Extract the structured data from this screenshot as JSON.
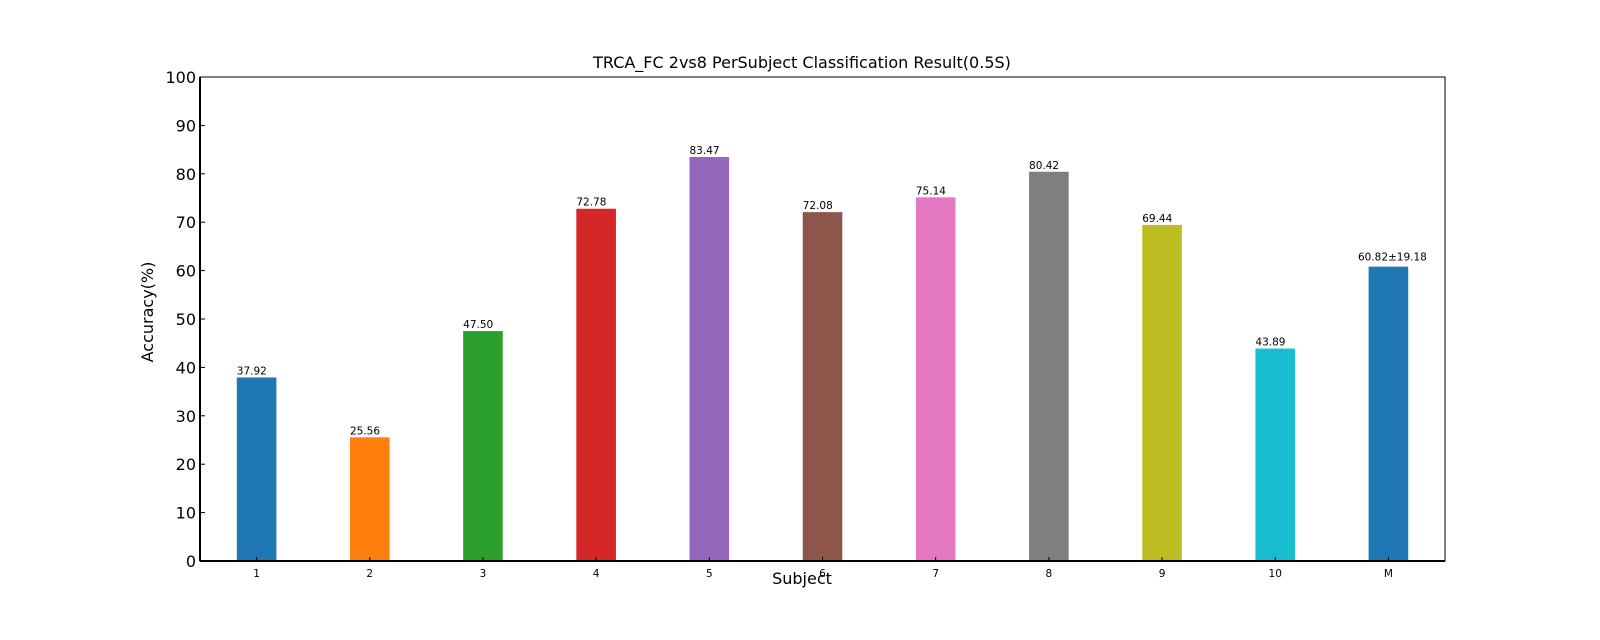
{
  "chart_data": {
    "type": "bar",
    "title": "TRCA_FC 2vs8 PerSubject Classification Result(0.5S)",
    "xlabel": "Subject",
    "ylabel": "Accuracy(%)",
    "ylim": [
      0,
      100
    ],
    "yticks": [
      0,
      10,
      20,
      30,
      40,
      50,
      60,
      70,
      80,
      90,
      100
    ],
    "categories": [
      "1",
      "2",
      "3",
      "4",
      "5",
      "6",
      "7",
      "8",
      "9",
      "10",
      "M"
    ],
    "values": [
      37.92,
      25.56,
      47.5,
      72.78,
      83.47,
      72.08,
      75.14,
      80.42,
      69.44,
      43.89,
      60.82
    ],
    "data_labels": [
      "37.92",
      "25.56",
      "47.50",
      "72.78",
      "83.47",
      "72.08",
      "75.14",
      "80.42",
      "69.44",
      "43.89",
      "60.82±19.18"
    ],
    "colors": [
      "#1f77b4",
      "#ff7f0e",
      "#2ca02c",
      "#d62728",
      "#9467bd",
      "#8c564b",
      "#e377c2",
      "#7f7f7f",
      "#bcbd22",
      "#17becf",
      "#1f77b4"
    ],
    "label_colors": [
      "#000000",
      "#000000",
      "#000000",
      "#000000",
      "#000000",
      "#000000",
      "#000000",
      "#000000",
      "#000000",
      "#000000",
      "#ff0000"
    ],
    "grid": false,
    "legend": "none"
  }
}
